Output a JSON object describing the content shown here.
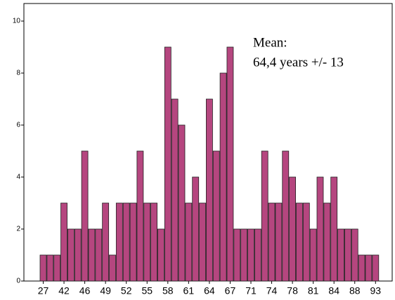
{
  "chart_data": {
    "type": "bar",
    "categories": [
      27,
      null,
      null,
      42,
      null,
      null,
      46,
      null,
      null,
      49,
      null,
      null,
      52,
      null,
      null,
      55,
      null,
      null,
      58,
      null,
      null,
      61,
      null,
      null,
      64,
      null,
      null,
      67,
      null,
      null,
      71,
      null,
      null,
      74,
      null,
      null,
      78,
      null,
      null,
      81,
      null,
      null,
      84,
      null,
      null,
      88,
      null,
      null,
      93
    ],
    "values": [
      1,
      1,
      1,
      3,
      2,
      2,
      5,
      2,
      2,
      3,
      1,
      3,
      3,
      3,
      5,
      3,
      3,
      2,
      9,
      7,
      6,
      3,
      4,
      3,
      7,
      5,
      8,
      9,
      2,
      2,
      2,
      2,
      5,
      3,
      3,
      5,
      4,
      3,
      3,
      2,
      4,
      3,
      4,
      2,
      2,
      2,
      1,
      1,
      1
    ],
    "color": "#b5467f",
    "ylim": [
      0,
      10
    ],
    "yticks": [
      0,
      2,
      4,
      6,
      8,
      10
    ],
    "annotations": [
      "Mean:",
      "64,4 years +/- 13"
    ]
  }
}
